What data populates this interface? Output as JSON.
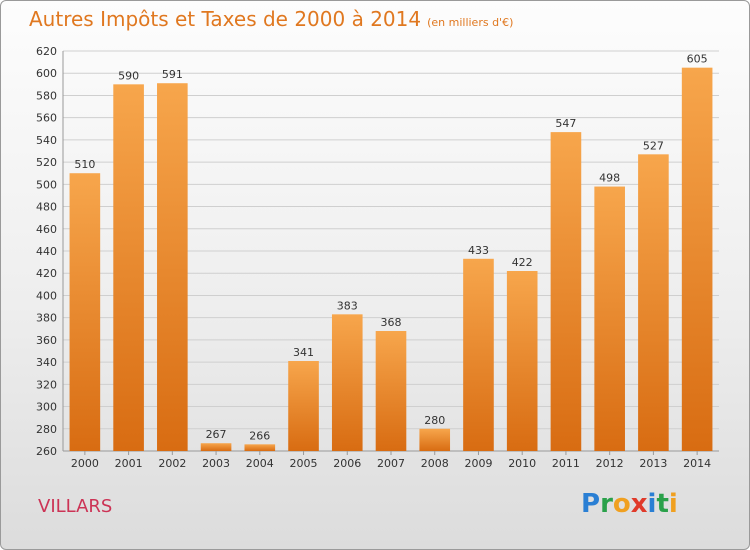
{
  "header": {
    "title": "Autres Impôts et Taxes de 2000 à 2014",
    "unit": "(en milliers d'€)"
  },
  "footer": {
    "place": "VILLARS",
    "logo_letters": [
      "P",
      "r",
      "o",
      "x",
      "i",
      "t",
      "i"
    ],
    "logo_colors": [
      "#2a7fd4",
      "#2aa14a",
      "#f0a020",
      "#e03a2a",
      "#2a7fd4",
      "#2aa14a",
      "#f0a020"
    ]
  },
  "colors": {
    "bar_light": "#f7a64c",
    "bar_dark": "#d86c12",
    "accent": "#e07820",
    "place": "#cc3355"
  },
  "chart_data": {
    "type": "bar",
    "categories": [
      "2000",
      "2001",
      "2002",
      "2003",
      "2004",
      "2005",
      "2006",
      "2007",
      "2008",
      "2009",
      "2010",
      "2011",
      "2012",
      "2013",
      "2014"
    ],
    "values": [
      510,
      590,
      591,
      267,
      266,
      341,
      383,
      368,
      280,
      433,
      422,
      547,
      498,
      527,
      605
    ],
    "title": "Autres Impôts et Taxes de 2000 à 2014",
    "subtitle": "(en milliers d'€)",
    "xlabel": "",
    "ylabel": "",
    "ylim": [
      260,
      620
    ],
    "yticks": [
      260,
      280,
      300,
      320,
      340,
      360,
      380,
      400,
      420,
      440,
      460,
      480,
      500,
      520,
      540,
      560,
      580,
      600,
      620
    ],
    "grid": true,
    "legend": "none"
  }
}
